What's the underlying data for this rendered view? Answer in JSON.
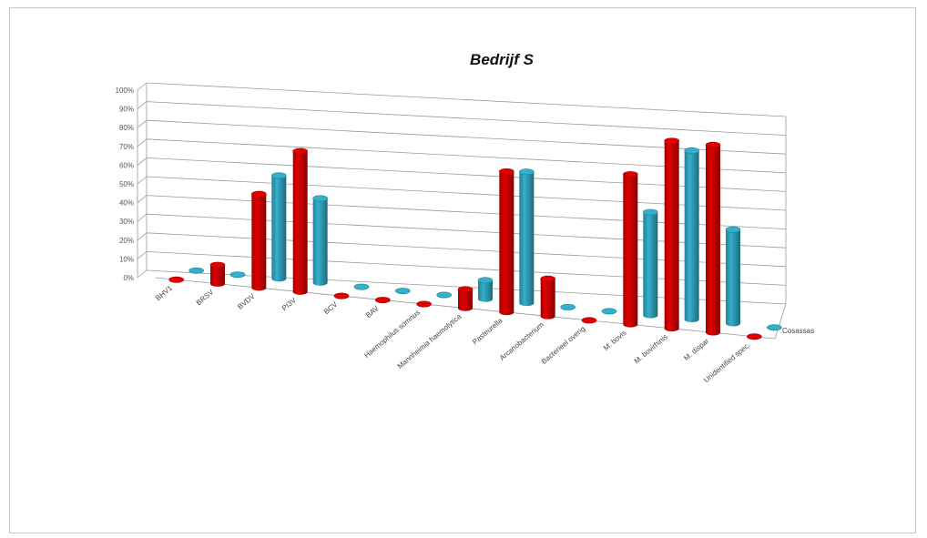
{
  "chart_data": {
    "type": "bar",
    "style": "3d-cylinder",
    "title": "Bedrijf S",
    "yticks": [
      "0%",
      "10%",
      "20%",
      "30%",
      "40%",
      "50%",
      "60%",
      "70%",
      "80%",
      "90%",
      "100%"
    ],
    "ylim": [
      0,
      100
    ],
    "grid": true,
    "categories": [
      "BHV1",
      "BRSV",
      "BVDV",
      "PI3V",
      "BCV",
      "BAV",
      "Haemophilus somnus",
      "Mannheimia haemolytica",
      "Pasteurella",
      "Arcanobacterium",
      "Bacterieel overig",
      "M. bovis",
      "M. bovirhinis",
      "M. dispar",
      "Unidentified spec."
    ],
    "series": [
      {
        "name": "",
        "color": "#e00000",
        "values": [
          0,
          10,
          50,
          75,
          0,
          0,
          0,
          10,
          75,
          20,
          0,
          80,
          100,
          100,
          0
        ]
      },
      {
        "name": "Cosassas",
        "color": "#33b0cc",
        "values": [
          0,
          0,
          55,
          45,
          0,
          0,
          0,
          10,
          70,
          0,
          0,
          55,
          90,
          50,
          0
        ]
      }
    ]
  }
}
